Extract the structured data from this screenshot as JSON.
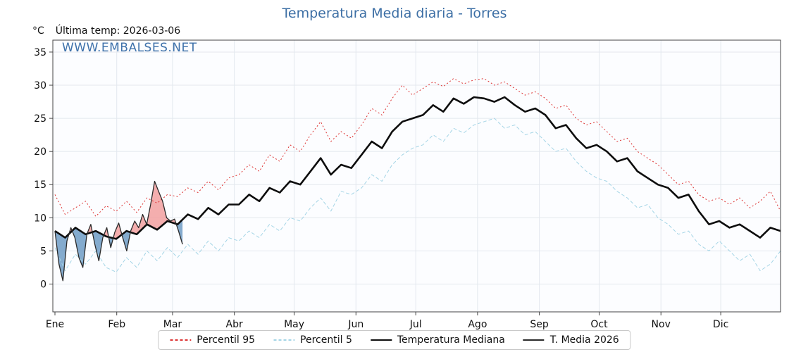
{
  "header": {
    "unit_label": "°C",
    "last_temp_label": "Última temp: 2026-03-06",
    "watermark": "WWW.EMBALSES.NET"
  },
  "chart_data": {
    "type": "line",
    "title": "Temperatura Media diaria - Torres",
    "title_color": "#3d6fa5",
    "watermark_color": "#3f72ab",
    "xlabel": "",
    "ylabel": "°C",
    "ylim": [
      -4.2,
      36.8
    ],
    "yticks": [
      0,
      5,
      10,
      15,
      20,
      25,
      30,
      35
    ],
    "months": [
      "Ene",
      "Feb",
      "Mar",
      "Abr",
      "May",
      "Jun",
      "Jul",
      "Ago",
      "Sep",
      "Oct",
      "Nov",
      "Dic"
    ],
    "month_start_days": [
      1,
      32,
      60,
      91,
      121,
      152,
      182,
      213,
      244,
      274,
      305,
      335
    ],
    "grid": true,
    "grid_color": "#e3e8ee",
    "frame_color": "#444444",
    "plot_bg": "#fcfdff",
    "fill_above": "#f2a0a0",
    "fill_below": "#6f9cc6",
    "legend_position": "bottom",
    "series": [
      {
        "name": "Percentil 95",
        "color": "#dd3333",
        "style": "dashed",
        "dash": "2 3",
        "width": 1,
        "values": [
          13.5,
          10.5,
          11.5,
          12.5,
          10.2,
          11.8,
          11.0,
          12.5,
          10.8,
          13.0,
          12.2,
          13.5,
          13.2,
          14.5,
          13.8,
          15.5,
          14.2,
          16.0,
          16.5,
          18.0,
          17.0,
          19.5,
          18.5,
          21.0,
          20.0,
          22.5,
          24.5,
          21.5,
          23.0,
          22.0,
          24.0,
          26.5,
          25.5,
          28.0,
          30.0,
          28.5,
          29.5,
          30.5,
          29.8,
          31.0,
          30.2,
          30.8,
          31.0,
          30.0,
          30.5,
          29.5,
          28.5,
          29.0,
          28.0,
          26.5,
          27.0,
          25.0,
          24.0,
          24.5,
          23.0,
          21.5,
          22.0,
          20.0,
          19.0,
          18.0,
          16.5,
          15.0,
          15.5,
          13.5,
          12.5,
          13.0,
          12.0,
          13.0,
          11.5,
          12.5,
          14.0,
          11.0
        ]
      },
      {
        "name": "Percentil 5",
        "color": "#a5d5e6",
        "style": "dashed",
        "dash": "5 3",
        "width": 1,
        "values": [
          5.5,
          2.0,
          4.5,
          3.0,
          5.0,
          2.5,
          1.8,
          4.0,
          2.5,
          5.0,
          3.5,
          5.5,
          4.0,
          6.0,
          4.5,
          6.5,
          5.0,
          7.0,
          6.5,
          8.0,
          7.0,
          9.0,
          8.0,
          10.0,
          9.5,
          11.5,
          13.0,
          11.0,
          14.0,
          13.5,
          14.5,
          16.5,
          15.5,
          18.0,
          19.5,
          20.5,
          21.0,
          22.5,
          21.5,
          23.5,
          22.8,
          24.0,
          24.5,
          25.0,
          23.5,
          24.0,
          22.5,
          23.0,
          21.5,
          20.0,
          20.5,
          18.5,
          17.0,
          16.0,
          15.5,
          14.0,
          13.0,
          11.5,
          12.0,
          10.0,
          9.0,
          7.5,
          8.0,
          6.0,
          5.0,
          6.5,
          5.0,
          3.5,
          4.5,
          2.0,
          3.0,
          5.0
        ]
      },
      {
        "name": "Temperatura Mediana",
        "color": "#0d0d0d",
        "style": "solid",
        "width": 2.6,
        "values": [
          8.0,
          7.0,
          8.5,
          7.5,
          8.0,
          7.2,
          6.8,
          8.0,
          7.5,
          9.0,
          8.2,
          9.5,
          9.0,
          10.5,
          9.8,
          11.5,
          10.5,
          12.0,
          12.0,
          13.5,
          12.5,
          14.5,
          13.8,
          15.5,
          15.0,
          17.0,
          19.0,
          16.5,
          18.0,
          17.5,
          19.5,
          21.5,
          20.5,
          23.0,
          24.5,
          25.0,
          25.5,
          27.0,
          26.0,
          28.0,
          27.2,
          28.2,
          28.0,
          27.5,
          28.2,
          27.0,
          26.0,
          26.5,
          25.5,
          23.5,
          24.0,
          22.0,
          20.5,
          21.0,
          20.0,
          18.5,
          19.0,
          17.0,
          16.0,
          15.0,
          14.5,
          13.0,
          13.5,
          11.0,
          9.0,
          9.5,
          8.5,
          9.0,
          8.0,
          7.0,
          8.5,
          8.0
        ]
      },
      {
        "name": "T. Media 2026",
        "color": "#2a2a2a",
        "style": "solid",
        "width": 1.3,
        "days": [
          1,
          3,
          5,
          7,
          9,
          11,
          13,
          15,
          17,
          19,
          21,
          23,
          25,
          27,
          29,
          31,
          33,
          35,
          37,
          39,
          41,
          43,
          45,
          47,
          49,
          51,
          53,
          55,
          57,
          59,
          61,
          63,
          65
        ],
        "values": [
          8.0,
          3.0,
          0.5,
          6.5,
          8.5,
          7.0,
          4.0,
          2.5,
          7.5,
          9.0,
          6.0,
          3.5,
          7.0,
          8.5,
          5.5,
          7.8,
          9.2,
          7.0,
          5.0,
          8.0,
          9.5,
          8.5,
          10.5,
          9.0,
          12.0,
          15.5,
          14.0,
          12.5,
          10.0,
          9.5,
          9.8,
          8.0,
          6.0
        ]
      }
    ]
  }
}
